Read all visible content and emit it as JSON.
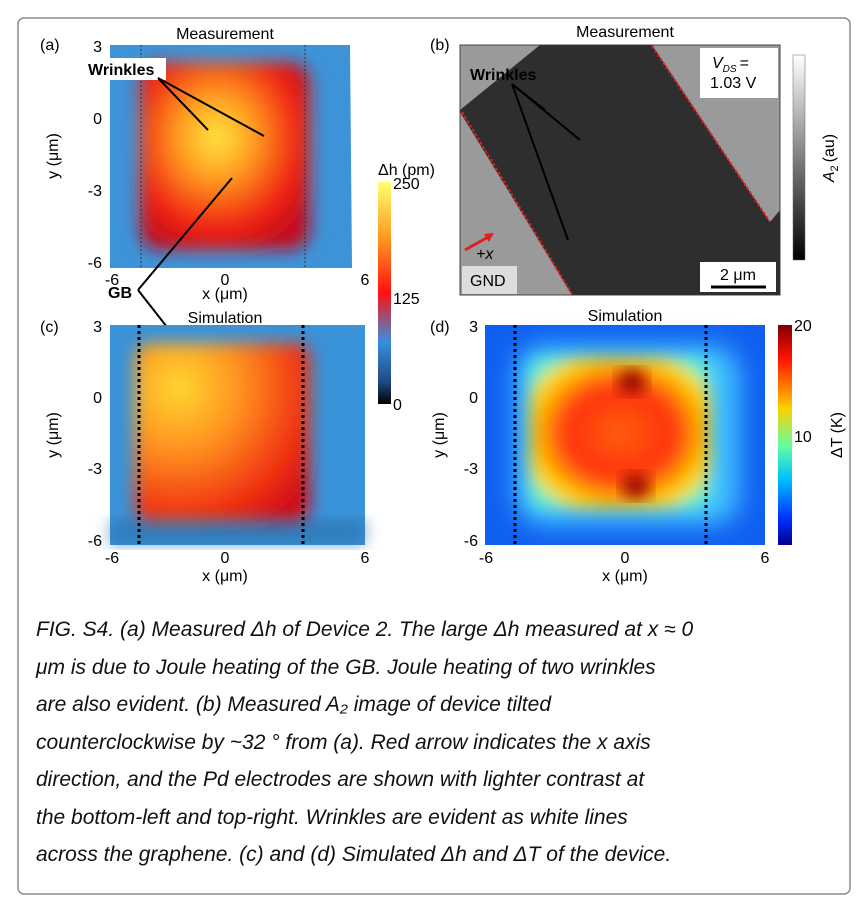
{
  "panels": [
    {
      "label": "(a)",
      "title": "Measurement",
      "x_label": "x (μm)",
      "y_label": "y (μm)",
      "x_ticks": [
        "-6",
        "0",
        "6"
      ],
      "y_ticks": [
        "3",
        "0",
        "-3",
        "-6"
      ],
      "annotations": [
        "Wrinkles",
        "GB"
      ]
    },
    {
      "label": "(b)",
      "title": "Measurement",
      "annotations": [
        "Wrinkles",
        "GND",
        "2 μm",
        "+x"
      ],
      "bias_symbol": "V",
      "bias_subscript": "DS",
      "bias_equals": "=",
      "bias_value": "1.03 V",
      "colorbar_symbol": "A",
      "colorbar_subscript": "2",
      "colorbar_unit": "(au)"
    },
    {
      "label": "(c)",
      "title": "Simulation",
      "x_label": "x (μm)",
      "y_label": "y (μm)",
      "x_ticks": [
        "-6",
        "0",
        "6"
      ],
      "y_ticks": [
        "3",
        "0",
        "-3",
        "-6"
      ]
    },
    {
      "label": "(d)",
      "title": "Simulation",
      "x_label": "x (μm)",
      "y_label": "y (μm)",
      "x_ticks": [
        "-6",
        "0",
        "6"
      ],
      "y_ticks": [
        "3",
        "0",
        "-3",
        "-6"
      ],
      "colorbar_label": "ΔT (K)",
      "colorbar_ticks": [
        "20",
        "10"
      ]
    }
  ],
  "colorbar_height": {
    "label": "Δh (pm)",
    "ticks": [
      "250",
      "125",
      "0"
    ]
  },
  "caption": [
    "FIG. S4. (a) Measured Δh of Device 2. The large Δh measured at x ≈ 0",
    "μm is due to Joule heating of the GB. Joule heating of two wrinkles",
    "are also evident. (b) Measured A₂ image of device tilted",
    "counterclockwise by ~32 ° from (a). Red arrow indicates the x axis",
    "direction, and the Pd electrodes are shown with lighter contrast at",
    "the bottom-left and top-right. Wrinkles are evident as white lines",
    "across the graphene. (c) and (d) Simulated Δh and ΔT of the device."
  ]
}
